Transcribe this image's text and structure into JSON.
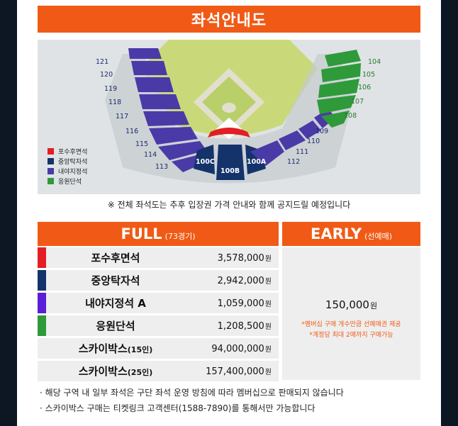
{
  "title": "좌석안내도",
  "map": {
    "sections_left": [
      "121",
      "120",
      "119",
      "118",
      "117",
      "116",
      "115",
      "114",
      "113"
    ],
    "sections_center": [
      "100C",
      "100B",
      "100A"
    ],
    "sections_right_blue": [
      "112",
      "111",
      "110",
      "109"
    ],
    "sections_right_green": [
      "104",
      "105",
      "106",
      "107",
      "108"
    ],
    "legend": [
      {
        "label": "포수후면석",
        "color": "#e31e24"
      },
      {
        "label": "중앙탁자석",
        "color": "#14336b"
      },
      {
        "label": "내야지정석",
        "color": "#4a3aa8"
      },
      {
        "label": "응원단석",
        "color": "#2e9a3a"
      }
    ]
  },
  "note": "※ 전체 좌석도는 추후 입장권 가격 안내와 함께 공지드릴 예정입니다",
  "full": {
    "title": "FULL",
    "sub": "(73경기)"
  },
  "early": {
    "title": "EARLY",
    "sub": "(선예매)",
    "price": "150,000",
    "won": "원",
    "notes": [
      "*멤버십 구매 개수만큼 선예매권 제공",
      "*계정당 최대 2매까지 구매가능"
    ]
  },
  "rows": [
    {
      "name": "포수후면석",
      "sub": "",
      "price": "3,578,000",
      "won": "원",
      "color": "#e31e24"
    },
    {
      "name": "중앙탁자석",
      "sub": "",
      "price": "2,942,000",
      "won": "원",
      "color": "#14336b"
    },
    {
      "name": "내야지정석 A",
      "sub": "",
      "price": "1,059,000",
      "won": "원",
      "color": "#5a1ed8"
    },
    {
      "name": "응원단석",
      "sub": "",
      "price": "1,208,500",
      "won": "원",
      "color": "#2e9a3a"
    },
    {
      "name": "스카이박스",
      "sub": "(15인)",
      "price": "94,000,000",
      "won": "원",
      "color": ""
    },
    {
      "name": "스카이박스",
      "sub": "(25인)",
      "price": "157,400,000",
      "won": "원",
      "color": ""
    }
  ],
  "bottom_notes": [
    "· 해당 구역 내 일부 좌석은 구단 좌석 운영 방침에 따라 멤버십으로 판매되지 않습니다",
    "· 스카이박스 구매는 티켓링크 고객센터(1588-7890)를 통해서만 가능합니다"
  ]
}
